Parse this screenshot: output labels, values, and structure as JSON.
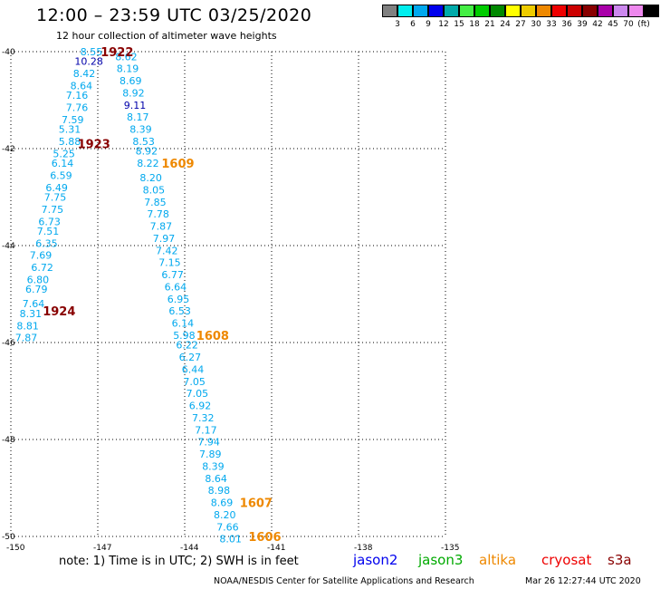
{
  "header": {
    "title": "12:00 – 23:59 UTC 03/25/2020",
    "subtitle": "12 hour collection of altimeter wave heights"
  },
  "scale": {
    "colors": [
      "#808080",
      "#00eeee",
      "#00a8ee",
      "#0000ee",
      "#00aaaa",
      "#44ee44",
      "#00cc00",
      "#008800",
      "#ffff00",
      "#eecc00",
      "#ee8800",
      "#ee0000",
      "#cc0000",
      "#880000",
      "#aa00aa",
      "#cc88ee",
      "#ee88ee",
      "#000000"
    ],
    "labels": [
      "3",
      "6",
      "9",
      "12",
      "15",
      "18",
      "21",
      "24",
      "27",
      "30",
      "33",
      "36",
      "39",
      "42",
      "45",
      "70",
      "(ft)"
    ]
  },
  "axes": {
    "lat_labels": [
      "-40",
      "-42",
      "-44",
      "-46",
      "-48",
      "-50"
    ],
    "lon_labels": [
      "-150",
      "-147",
      "-144",
      "-141",
      "-138",
      "-135"
    ]
  },
  "tracks": [
    {
      "name": "track-1922-1924",
      "color": "#00a8ee",
      "points": [
        {
          "v": "8.55",
          "lat": -40.0,
          "lon": -147.6
        },
        {
          "v": "10.28",
          "lat": -40.2,
          "lon": -147.8,
          "color": "#0000aa"
        },
        {
          "v": "8.42",
          "lat": -40.45,
          "lon": -147.85
        },
        {
          "v": "8.64",
          "lat": -40.7,
          "lon": -147.95
        },
        {
          "v": "7.16",
          "lat": -40.9,
          "lon": -148.1
        },
        {
          "v": "7.76",
          "lat": -41.15,
          "lon": -148.1
        },
        {
          "v": "7.59",
          "lat": -41.4,
          "lon": -148.25
        },
        {
          "v": "5.31",
          "lat": -41.6,
          "lon": -148.35
        },
        {
          "v": "5.88",
          "lat": -41.85,
          "lon": -148.35
        },
        {
          "v": "5.25",
          "lat": -42.1,
          "lon": -148.55
        },
        {
          "v": "6.14",
          "lat": -42.3,
          "lon": -148.6
        },
        {
          "v": "6.59",
          "lat": -42.55,
          "lon": -148.65
        },
        {
          "v": "6.49",
          "lat": -42.8,
          "lon": -148.8
        },
        {
          "v": "7.75",
          "lat": -43.0,
          "lon": -148.85
        },
        {
          "v": "7.75",
          "lat": -43.25,
          "lon": -148.95
        },
        {
          "v": "6.73",
          "lat": -43.5,
          "lon": -149.05
        },
        {
          "v": "7.51",
          "lat": -43.7,
          "lon": -149.1
        },
        {
          "v": "6.35",
          "lat": -43.95,
          "lon": -149.15
        },
        {
          "v": "7.69",
          "lat": -44.2,
          "lon": -149.35
        },
        {
          "v": "6.72",
          "lat": -44.45,
          "lon": -149.3
        },
        {
          "v": "6.80",
          "lat": -44.7,
          "lon": -149.45
        },
        {
          "v": "6.79",
          "lat": -44.9,
          "lon": -149.5
        },
        {
          "v": "7.64",
          "lat": -45.2,
          "lon": -149.6
        },
        {
          "v": "8.31",
          "lat": -45.4,
          "lon": -149.7
        },
        {
          "v": "8.81",
          "lat": -45.65,
          "lon": -149.8
        },
        {
          "v": "7.87",
          "lat": -45.9,
          "lon": -149.85
        }
      ]
    },
    {
      "name": "track-1609-1606",
      "color": "#00a8ee",
      "points": [
        {
          "v": "8.62",
          "lat": -40.1,
          "lon": -146.4
        },
        {
          "v": "8.19",
          "lat": -40.35,
          "lon": -146.35
        },
        {
          "v": "8.69",
          "lat": -40.6,
          "lon": -146.25
        },
        {
          "v": "8.92",
          "lat": -40.85,
          "lon": -146.15
        },
        {
          "v": "9.11",
          "lat": -41.1,
          "lon": -146.1,
          "color": "#0000aa"
        },
        {
          "v": "8.17",
          "lat": -41.35,
          "lon": -146.0
        },
        {
          "v": "8.39",
          "lat": -41.6,
          "lon": -145.9
        },
        {
          "v": "8.53",
          "lat": -41.85,
          "lon": -145.8
        },
        {
          "v": "8.92",
          "lat": -42.05,
          "lon": -145.7
        },
        {
          "v": "8.22",
          "lat": -42.3,
          "lon": -145.65
        },
        {
          "v": "8.20",
          "lat": -42.6,
          "lon": -145.55
        },
        {
          "v": "8.05",
          "lat": -42.85,
          "lon": -145.45
        },
        {
          "v": "7.85",
          "lat": -43.1,
          "lon": -145.4
        },
        {
          "v": "7.78",
          "lat": -43.35,
          "lon": -145.3
        },
        {
          "v": "7.87",
          "lat": -43.6,
          "lon": -145.2
        },
        {
          "v": "7.97",
          "lat": -43.85,
          "lon": -145.1
        },
        {
          "v": "7.42",
          "lat": -44.1,
          "lon": -145.0
        },
        {
          "v": "7.15",
          "lat": -44.35,
          "lon": -144.9
        },
        {
          "v": "6.77",
          "lat": -44.6,
          "lon": -144.8
        },
        {
          "v": "6.64",
          "lat": -44.85,
          "lon": -144.7
        },
        {
          "v": "6.95",
          "lat": -45.1,
          "lon": -144.6
        },
        {
          "v": "6.53",
          "lat": -45.35,
          "lon": -144.55
        },
        {
          "v": "6.14",
          "lat": -45.6,
          "lon": -144.45
        },
        {
          "v": "5.98",
          "lat": -45.85,
          "lon": -144.4
        },
        {
          "v": "6.22",
          "lat": -46.05,
          "lon": -144.3
        },
        {
          "v": "6.27",
          "lat": -46.3,
          "lon": -144.2
        },
        {
          "v": "6.44",
          "lat": -46.55,
          "lon": -144.1
        },
        {
          "v": "7.05",
          "lat": -46.8,
          "lon": -144.05
        },
        {
          "v": "7.05",
          "lat": -47.05,
          "lon": -143.95
        },
        {
          "v": "6.92",
          "lat": -47.3,
          "lon": -143.85
        },
        {
          "v": "7.32",
          "lat": -47.55,
          "lon": -143.75
        },
        {
          "v": "7.17",
          "lat": -47.8,
          "lon": -143.65
        },
        {
          "v": "7.94",
          "lat": -48.05,
          "lon": -143.55
        },
        {
          "v": "7.89",
          "lat": -48.3,
          "lon": -143.5
        },
        {
          "v": "8.39",
          "lat": -48.55,
          "lon": -143.4
        },
        {
          "v": "8.64",
          "lat": -48.8,
          "lon": -143.3
        },
        {
          "v": "8.98",
          "lat": -49.05,
          "lon": -143.2
        },
        {
          "v": "8.69",
          "lat": -49.3,
          "lon": -143.1
        },
        {
          "v": "8.20",
          "lat": -49.55,
          "lon": -143.0
        },
        {
          "v": "7.66",
          "lat": -49.8,
          "lon": -142.9
        },
        {
          "v": "8.01",
          "lat": -50.05,
          "lon": -142.8
        }
      ]
    }
  ],
  "time_labels": [
    {
      "text": "1922",
      "lat": -40.0,
      "lon": -146.9,
      "color": "#880000"
    },
    {
      "text": "1923",
      "lat": -41.9,
      "lon": -147.7,
      "color": "#880000"
    },
    {
      "text": "1924",
      "lat": -45.35,
      "lon": -148.9,
      "color": "#880000"
    },
    {
      "text": "1609",
      "lat": -42.3,
      "lon": -144.8,
      "color": "#ee8800"
    },
    {
      "text": "1608",
      "lat": -45.85,
      "lon": -143.6,
      "color": "#ee8800"
    },
    {
      "text": "1607",
      "lat": -49.3,
      "lon": -142.1,
      "color": "#ee8800"
    },
    {
      "text": "1606",
      "lat": -50.0,
      "lon": -141.8,
      "color": "#ee8800"
    }
  ],
  "footer": {
    "note": "note: 1) Time is in UTC; 2) SWH is in feet",
    "satellites": [
      {
        "name": "jason2",
        "color": "#0000ee"
      },
      {
        "name": "jason3",
        "color": "#00aa00"
      },
      {
        "name": "altika",
        "color": "#ee8800"
      },
      {
        "name": "cryosat",
        "color": "#ee0000"
      },
      {
        "name": "s3a",
        "color": "#880000"
      }
    ],
    "credit": "NOAA/NESDIS Center for Satellite Applications and Research",
    "timestamp": "Mar 26 12:27:44 UTC 2020"
  }
}
